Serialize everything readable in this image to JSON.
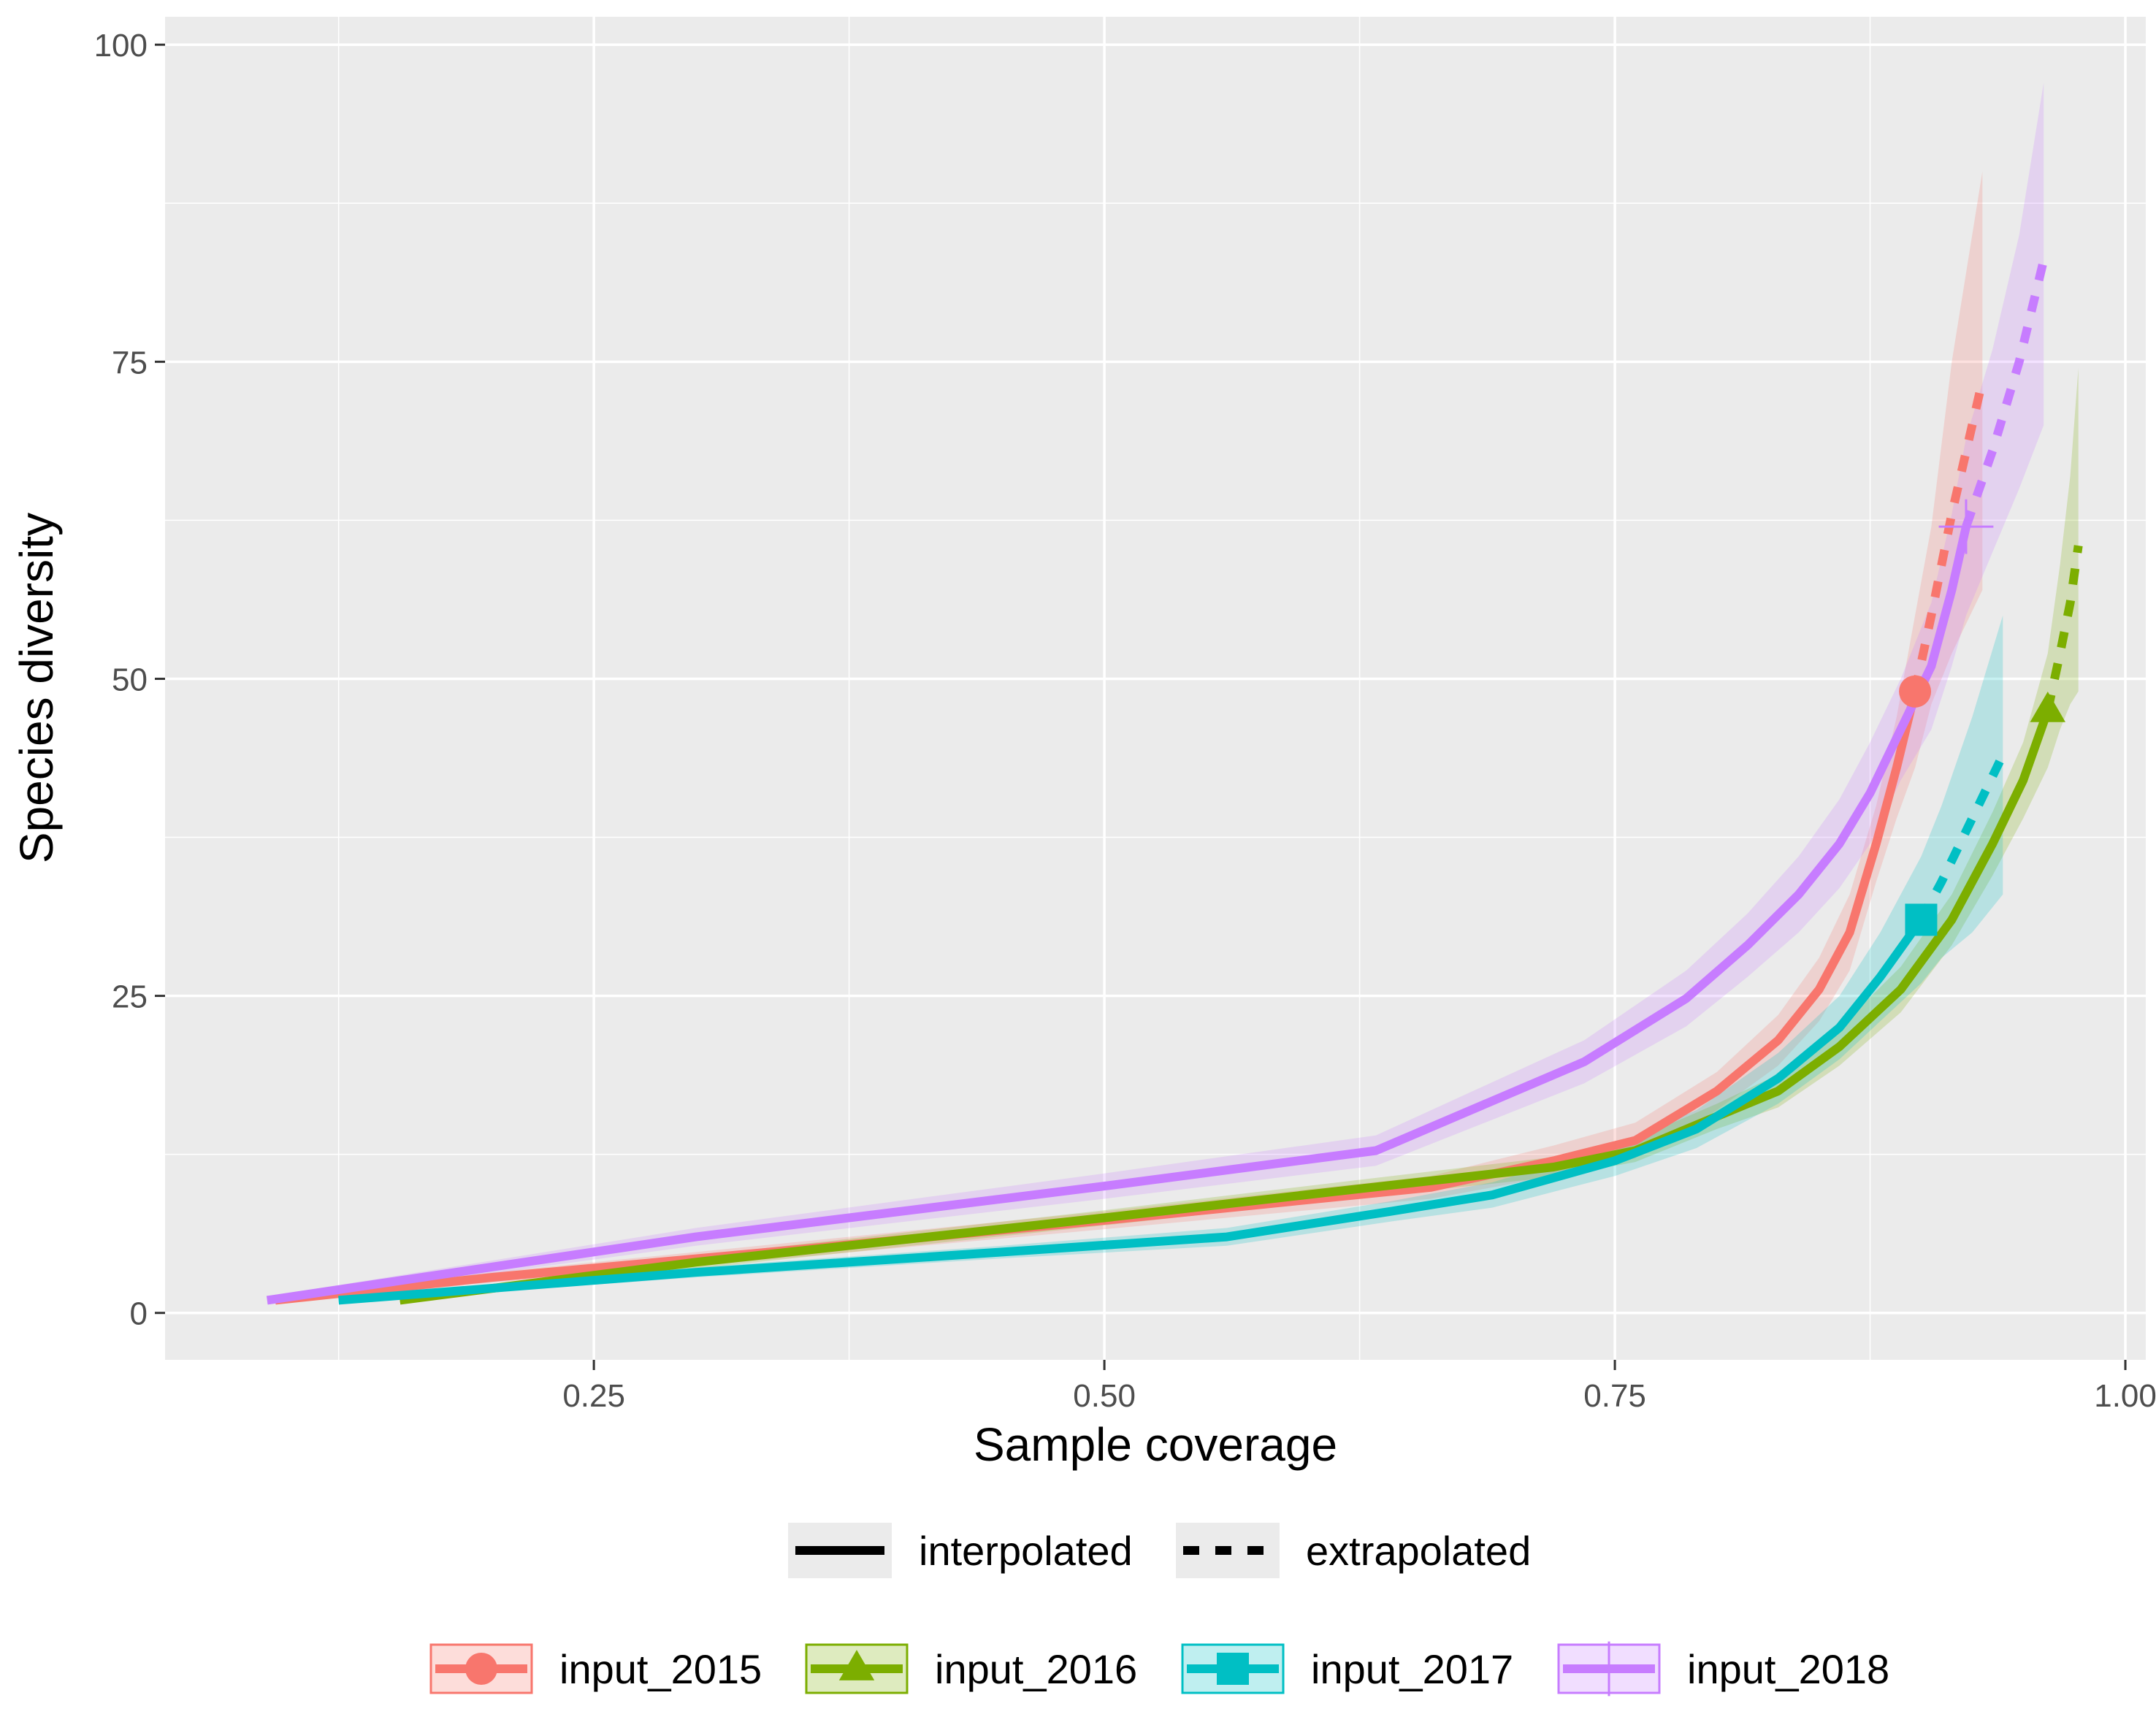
{
  "chart_data": {
    "type": "line",
    "title": "",
    "xlabel": "Sample coverage",
    "ylabel": "Species diversity",
    "xlim": [
      0.04,
      1.01
    ],
    "ylim": [
      -3.7,
      102.2
    ],
    "x_ticks": [
      0.25,
      0.5,
      0.75,
      1.0
    ],
    "x_tick_labels": [
      "0.25",
      "0.50",
      "0.75",
      "1.00"
    ],
    "y_ticks": [
      0,
      25,
      50,
      75,
      100
    ],
    "y_tick_labels": [
      "0",
      "25",
      "50",
      "75",
      "100"
    ],
    "grid": true,
    "legend_placement": "bottom",
    "linetype_legend": [
      {
        "label": "interpolated",
        "dash": "solid"
      },
      {
        "label": "extrapolated",
        "dash": "dashed"
      }
    ],
    "series": [
      {
        "name": "input_2015",
        "color": "#F8766D",
        "marker": "circle",
        "observed": [
          0.897,
          49
        ],
        "interpolated": [
          [
            0.094,
            1
          ],
          [
            0.2,
            2.8
          ],
          [
            0.35,
            5
          ],
          [
            0.5,
            7.3
          ],
          [
            0.66,
            9.9
          ],
          [
            0.72,
            12
          ],
          [
            0.76,
            13.6
          ],
          [
            0.8,
            17.5
          ],
          [
            0.83,
            21.5
          ],
          [
            0.85,
            25.5
          ],
          [
            0.865,
            30
          ],
          [
            0.878,
            37
          ],
          [
            0.888,
            43
          ],
          [
            0.897,
            49
          ]
        ],
        "extrapolated": [
          [
            0.897,
            49
          ],
          [
            0.905,
            55
          ],
          [
            0.915,
            63
          ],
          [
            0.93,
            73.5
          ]
        ],
        "ci_upper": [
          [
            0.094,
            1.3
          ],
          [
            0.2,
            3.2
          ],
          [
            0.35,
            5.6
          ],
          [
            0.5,
            8
          ],
          [
            0.66,
            10.8
          ],
          [
            0.72,
            13.2
          ],
          [
            0.76,
            15
          ],
          [
            0.8,
            19
          ],
          [
            0.83,
            23.5
          ],
          [
            0.85,
            28
          ],
          [
            0.865,
            33
          ],
          [
            0.878,
            40
          ],
          [
            0.888,
            47
          ],
          [
            0.897,
            55
          ],
          [
            0.905,
            62
          ],
          [
            0.915,
            75
          ],
          [
            0.93,
            90
          ]
        ],
        "ci_lower": [
          [
            0.094,
            0.7
          ],
          [
            0.2,
            2.4
          ],
          [
            0.35,
            4.4
          ],
          [
            0.5,
            6.6
          ],
          [
            0.66,
            9
          ],
          [
            0.72,
            10.8
          ],
          [
            0.76,
            12.2
          ],
          [
            0.8,
            16
          ],
          [
            0.83,
            19.5
          ],
          [
            0.85,
            23
          ],
          [
            0.865,
            27
          ],
          [
            0.878,
            34
          ],
          [
            0.888,
            39
          ],
          [
            0.897,
            43
          ],
          [
            0.905,
            48
          ],
          [
            0.915,
            52
          ],
          [
            0.93,
            57
          ]
        ]
      },
      {
        "name": "input_2016",
        "color": "#7CAE00",
        "marker": "triangle",
        "observed": [
          0.962,
          47.5
        ],
        "interpolated": [
          [
            0.155,
            1
          ],
          [
            0.3,
            4
          ],
          [
            0.5,
            7.5
          ],
          [
            0.62,
            9.7
          ],
          [
            0.72,
            11.5
          ],
          [
            0.76,
            12.8
          ],
          [
            0.8,
            15.5
          ],
          [
            0.83,
            17.5
          ],
          [
            0.86,
            21
          ],
          [
            0.89,
            25.5
          ],
          [
            0.915,
            31
          ],
          [
            0.935,
            37
          ],
          [
            0.95,
            42
          ],
          [
            0.962,
            47.5
          ]
        ],
        "extrapolated": [
          [
            0.962,
            47.5
          ],
          [
            0.968,
            52
          ],
          [
            0.973,
            56
          ],
          [
            0.977,
            60.5
          ]
        ],
        "ci_upper": [
          [
            0.155,
            1.2
          ],
          [
            0.3,
            4.5
          ],
          [
            0.5,
            8.1
          ],
          [
            0.62,
            10.4
          ],
          [
            0.72,
            12.3
          ],
          [
            0.76,
            13.7
          ],
          [
            0.8,
            16.5
          ],
          [
            0.83,
            18.8
          ],
          [
            0.86,
            22.5
          ],
          [
            0.89,
            27.3
          ],
          [
            0.915,
            33
          ],
          [
            0.935,
            39.5
          ],
          [
            0.95,
            45
          ],
          [
            0.962,
            52
          ],
          [
            0.968,
            59
          ],
          [
            0.973,
            66
          ],
          [
            0.977,
            74.5
          ]
        ],
        "ci_lower": [
          [
            0.155,
            0.8
          ],
          [
            0.3,
            3.5
          ],
          [
            0.5,
            6.9
          ],
          [
            0.62,
            9
          ],
          [
            0.72,
            10.7
          ],
          [
            0.76,
            11.9
          ],
          [
            0.8,
            14.5
          ],
          [
            0.83,
            16.2
          ],
          [
            0.86,
            19.5
          ],
          [
            0.89,
            23.7
          ],
          [
            0.915,
            29
          ],
          [
            0.935,
            34.5
          ],
          [
            0.95,
            39
          ],
          [
            0.962,
            43
          ],
          [
            0.968,
            46
          ],
          [
            0.973,
            48
          ],
          [
            0.977,
            49
          ]
        ]
      },
      {
        "name": "input_2017",
        "color": "#00BFC4",
        "marker": "square",
        "observed": [
          0.9,
          31
        ],
        "interpolated": [
          [
            0.125,
            1
          ],
          [
            0.3,
            3.2
          ],
          [
            0.45,
            4.8
          ],
          [
            0.56,
            6
          ],
          [
            0.64,
            8
          ],
          [
            0.69,
            9.3
          ],
          [
            0.75,
            12
          ],
          [
            0.79,
            14.5
          ],
          [
            0.83,
            18.5
          ],
          [
            0.86,
            22.5
          ],
          [
            0.88,
            26.5
          ],
          [
            0.9,
            31
          ]
        ],
        "extrapolated": [
          [
            0.9,
            31
          ],
          [
            0.91,
            34
          ],
          [
            0.925,
            39
          ],
          [
            0.94,
            44
          ]
        ],
        "ci_upper": [
          [
            0.125,
            1.2
          ],
          [
            0.3,
            3.6
          ],
          [
            0.45,
            5.3
          ],
          [
            0.56,
            6.7
          ],
          [
            0.64,
            8.8
          ],
          [
            0.69,
            10.3
          ],
          [
            0.75,
            13.2
          ],
          [
            0.79,
            16
          ],
          [
            0.83,
            20.5
          ],
          [
            0.86,
            25
          ],
          [
            0.88,
            30
          ],
          [
            0.9,
            36
          ],
          [
            0.91,
            40
          ],
          [
            0.925,
            47
          ],
          [
            0.94,
            55
          ]
        ],
        "ci_lower": [
          [
            0.125,
            0.8
          ],
          [
            0.3,
            2.8
          ],
          [
            0.45,
            4.3
          ],
          [
            0.56,
            5.3
          ],
          [
            0.64,
            7.2
          ],
          [
            0.69,
            8.3
          ],
          [
            0.75,
            10.8
          ],
          [
            0.79,
            13
          ],
          [
            0.83,
            16.5
          ],
          [
            0.86,
            20
          ],
          [
            0.88,
            23
          ],
          [
            0.9,
            26
          ],
          [
            0.91,
            28
          ],
          [
            0.925,
            30
          ],
          [
            0.94,
            33
          ]
        ]
      },
      {
        "name": "input_2018",
        "color": "#C77CFF",
        "marker": "cross",
        "observed": [
          0.922,
          62
        ],
        "interpolated": [
          [
            0.09,
            1
          ],
          [
            0.3,
            6
          ],
          [
            0.5,
            10
          ],
          [
            0.633,
            12.8
          ],
          [
            0.735,
            19.8
          ],
          [
            0.785,
            24.8
          ],
          [
            0.815,
            29
          ],
          [
            0.84,
            33
          ],
          [
            0.86,
            37
          ],
          [
            0.875,
            41
          ],
          [
            0.89,
            46
          ],
          [
            0.905,
            51
          ],
          [
            0.915,
            57
          ],
          [
            0.922,
            62
          ]
        ],
        "extrapolated": [
          [
            0.922,
            62
          ],
          [
            0.935,
            68
          ],
          [
            0.948,
            75
          ],
          [
            0.96,
            83
          ]
        ],
        "ci_upper": [
          [
            0.09,
            1.3
          ],
          [
            0.3,
            6.7
          ],
          [
            0.5,
            11
          ],
          [
            0.633,
            14
          ],
          [
            0.735,
            21.5
          ],
          [
            0.785,
            27
          ],
          [
            0.815,
            31.5
          ],
          [
            0.84,
            36
          ],
          [
            0.86,
            40.5
          ],
          [
            0.875,
            45
          ],
          [
            0.89,
            50
          ],
          [
            0.905,
            56
          ],
          [
            0.915,
            63
          ],
          [
            0.922,
            69
          ],
          [
            0.935,
            76
          ],
          [
            0.948,
            85
          ],
          [
            0.96,
            97
          ]
        ],
        "ci_lower": [
          [
            0.09,
            0.7
          ],
          [
            0.3,
            5.3
          ],
          [
            0.5,
            9
          ],
          [
            0.633,
            11.6
          ],
          [
            0.735,
            18.1
          ],
          [
            0.785,
            22.6
          ],
          [
            0.815,
            26.5
          ],
          [
            0.84,
            30
          ],
          [
            0.86,
            33.5
          ],
          [
            0.875,
            37
          ],
          [
            0.89,
            42
          ],
          [
            0.905,
            46
          ],
          [
            0.915,
            51
          ],
          [
            0.922,
            55
          ],
          [
            0.935,
            60
          ],
          [
            0.948,
            65
          ],
          [
            0.96,
            70
          ]
        ]
      }
    ]
  }
}
